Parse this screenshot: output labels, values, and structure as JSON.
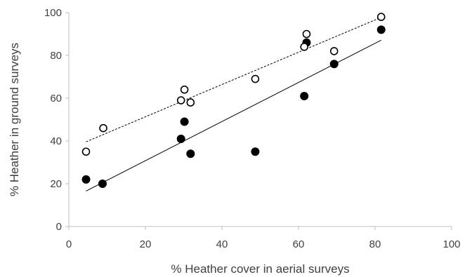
{
  "chart_data": {
    "type": "scatter",
    "title": "",
    "xlabel": "% Heather cover in aerial surveys",
    "ylabel": "% Heather in ground surveys",
    "xlim": [
      0,
      100
    ],
    "ylim": [
      0,
      100
    ],
    "xticks": [
      0,
      20,
      40,
      60,
      80,
      100
    ],
    "yticks": [
      0,
      20,
      40,
      60,
      80,
      100
    ],
    "grid": false,
    "legend": "none",
    "series": [
      {
        "marker": "filled-circle",
        "color": "#000000",
        "trendline": "solid",
        "points": [
          [
            4.5,
            22
          ],
          [
            8.8,
            20
          ],
          [
            29.3,
            41
          ],
          [
            30.2,
            49
          ],
          [
            31.8,
            34
          ],
          [
            48.7,
            35
          ],
          [
            61.5,
            61
          ],
          [
            62.1,
            86
          ],
          [
            69.3,
            76
          ],
          [
            81.6,
            92
          ]
        ]
      },
      {
        "marker": "open-circle",
        "color": "#000000",
        "trendline": "dotted",
        "points": [
          [
            4.5,
            35
          ],
          [
            9.0,
            46
          ],
          [
            29.3,
            59
          ],
          [
            30.2,
            64
          ],
          [
            31.8,
            58
          ],
          [
            48.7,
            69
          ],
          [
            61.5,
            84
          ],
          [
            62.1,
            90
          ],
          [
            69.3,
            82
          ],
          [
            81.6,
            98
          ]
        ]
      }
    ]
  }
}
